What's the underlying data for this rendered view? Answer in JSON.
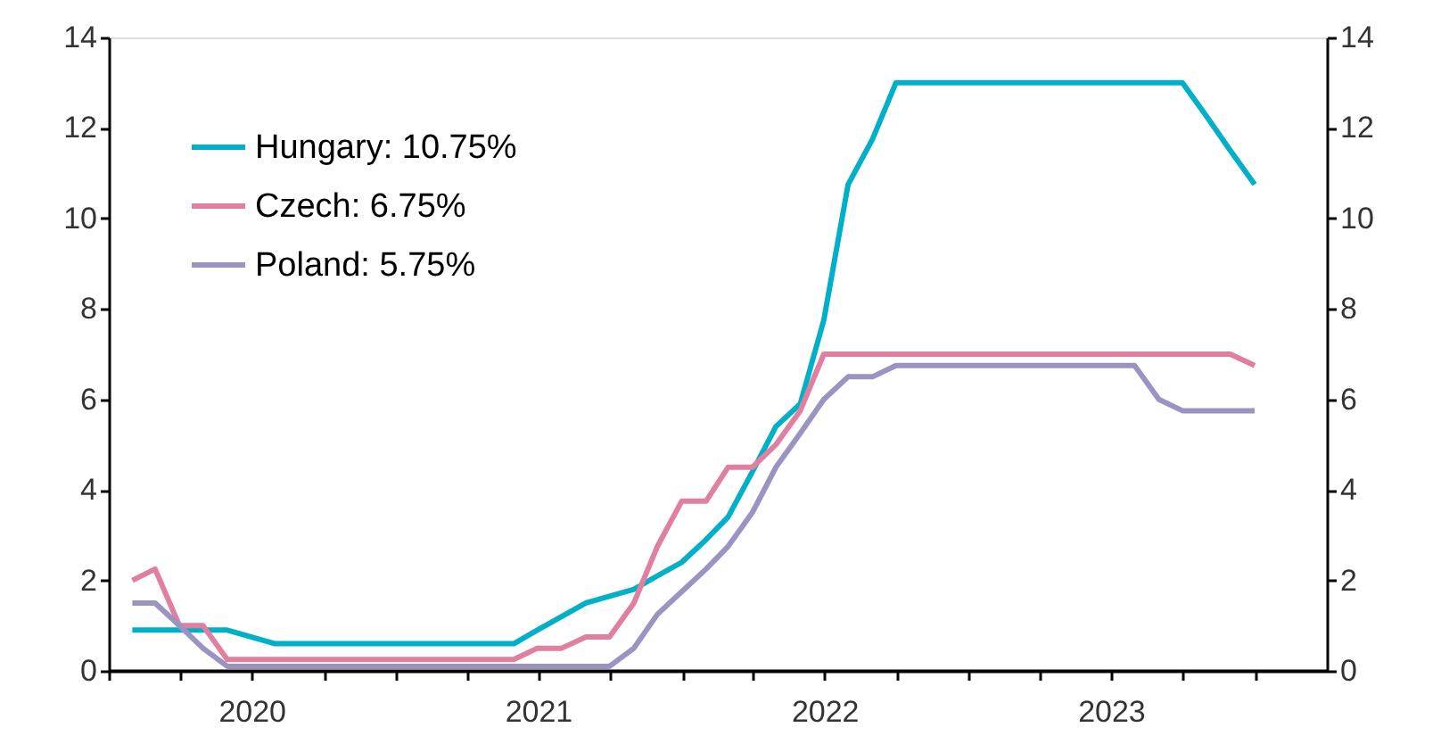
{
  "chart_data": {
    "type": "line",
    "x": [
      "2020-01-31",
      "2020-02-29",
      "2020-03-31",
      "2020-04-30",
      "2020-05-31",
      "2020-06-30",
      "2020-07-31",
      "2020-08-31",
      "2020-09-30",
      "2020-10-31",
      "2020-11-30",
      "2020-12-31",
      "2021-01-31",
      "2021-02-28",
      "2021-03-31",
      "2021-04-30",
      "2021-05-31",
      "2021-06-30",
      "2021-07-31",
      "2021-08-31",
      "2021-09-30",
      "2021-10-31",
      "2021-11-30",
      "2021-12-31",
      "2022-01-31",
      "2022-02-28",
      "2022-03-31",
      "2022-04-30",
      "2022-05-31",
      "2022-06-30",
      "2022-07-31",
      "2022-08-31",
      "2022-09-30",
      "2022-10-31",
      "2022-11-30",
      "2022-12-31",
      "2023-01-31",
      "2023-02-28",
      "2023-03-31",
      "2023-04-30",
      "2023-05-31",
      "2023-06-30",
      "2023-07-31",
      "2023-08-31",
      "2023-09-30",
      "2023-10-31",
      "2023-11-30",
      "2023-12-31"
    ],
    "series": [
      {
        "name": "Hungary: 10.75%",
        "color": "#00b0c8",
        "values": [
          0.9,
          0.9,
          0.9,
          0.9,
          0.9,
          0.75,
          0.6,
          0.6,
          0.6,
          0.6,
          0.6,
          0.6,
          0.6,
          0.6,
          0.6,
          0.6,
          0.6,
          0.9,
          1.2,
          1.5,
          1.65,
          1.8,
          2.1,
          2.4,
          2.9,
          3.4,
          4.4,
          5.4,
          5.9,
          7.75,
          10.75,
          11.75,
          13,
          13,
          13,
          13,
          13,
          13,
          13,
          13,
          13,
          13,
          13,
          13,
          13,
          12.25,
          11.5,
          10.75
        ]
      },
      {
        "name": "Czech: 6.75%",
        "color": "#e07fa0",
        "values": [
          2.0,
          2.25,
          1.0,
          1.0,
          0.25,
          0.25,
          0.25,
          0.25,
          0.25,
          0.25,
          0.25,
          0.25,
          0.25,
          0.25,
          0.25,
          0.25,
          0.25,
          0.5,
          0.5,
          0.75,
          0.75,
          1.5,
          2.75,
          3.75,
          3.75,
          4.5,
          4.5,
          5.0,
          5.75,
          7,
          7,
          7,
          7,
          7,
          7,
          7,
          7,
          7,
          7,
          7,
          7,
          7,
          7,
          7,
          7,
          7,
          7,
          6.75
        ]
      },
      {
        "name": "Poland: 5.75%",
        "color": "#9b93c1",
        "values": [
          1.5,
          1.5,
          1.0,
          0.5,
          0.1,
          0.1,
          0.1,
          0.1,
          0.1,
          0.1,
          0.1,
          0.1,
          0.1,
          0.1,
          0.1,
          0.1,
          0.1,
          0.1,
          0.1,
          0.1,
          0.1,
          0.5,
          1.25,
          1.75,
          2.25,
          2.75,
          3.5,
          4.5,
          5.25,
          6.0,
          6.5,
          6.5,
          6.75,
          6.75,
          6.75,
          6.75,
          6.75,
          6.75,
          6.75,
          6.75,
          6.75,
          6.75,
          6.75,
          6.0,
          5.75,
          5.75,
          5.75,
          5.75
        ]
      }
    ],
    "xlim": [
      "2020-01-01",
      "2024-04-01"
    ],
    "xticks": [
      {
        "value": "2020-01-01",
        "label": null
      },
      {
        "value": "2020-04-01",
        "label": null
      },
      {
        "value": "2020-07-01",
        "label": "2020"
      },
      {
        "value": "2020-10-01",
        "label": null
      },
      {
        "value": "2021-01-01",
        "label": null
      },
      {
        "value": "2021-04-01",
        "label": null
      },
      {
        "value": "2021-07-01",
        "label": "2021"
      },
      {
        "value": "2021-10-01",
        "label": null
      },
      {
        "value": "2022-01-01",
        "label": null
      },
      {
        "value": "2022-04-01",
        "label": null
      },
      {
        "value": "2022-07-01",
        "label": "2022"
      },
      {
        "value": "2022-10-01",
        "label": null
      },
      {
        "value": "2023-01-01",
        "label": null
      },
      {
        "value": "2023-04-01",
        "label": null
      },
      {
        "value": "2023-07-01",
        "label": "2023"
      },
      {
        "value": "2023-10-01",
        "label": null
      },
      {
        "value": "2024-01-01",
        "label": null
      }
    ],
    "ylim": [
      0,
      14
    ],
    "yticks": [
      0,
      2,
      4,
      6,
      8,
      10,
      12,
      14
    ],
    "y2lim": [
      0,
      14
    ],
    "y2ticks": [
      0,
      2,
      4,
      6,
      8,
      10,
      12,
      14
    ],
    "grid": false,
    "legend": "top left",
    "marker": "none",
    "line_style": "solid"
  }
}
